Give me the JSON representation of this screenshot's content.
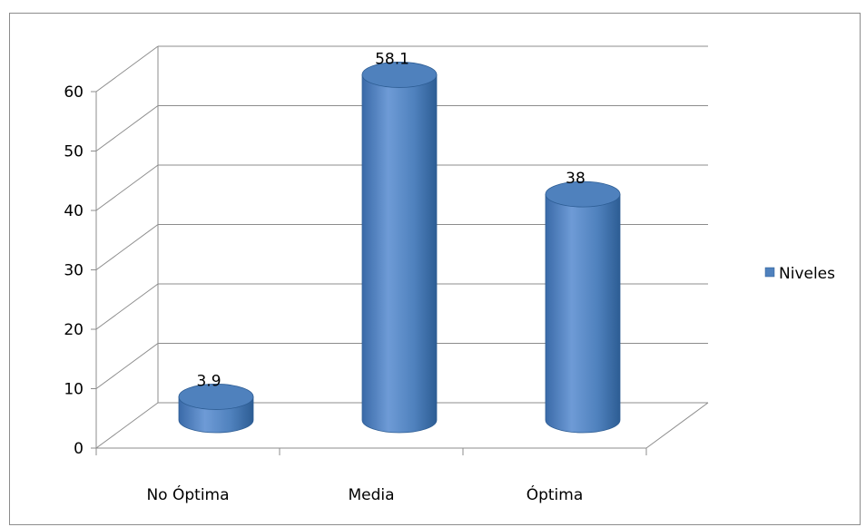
{
  "chart_data": {
    "type": "bar",
    "categories": [
      "No Óptima",
      "Media",
      "Óptima"
    ],
    "series": [
      {
        "name": "Niveles",
        "values": [
          3.9,
          58.1,
          38
        ],
        "color": "#4f81bd"
      }
    ],
    "data_labels": [
      "3.9",
      "58.1",
      "38"
    ],
    "y_ticks": [
      "0",
      "10",
      "20",
      "30",
      "40",
      "50",
      "60"
    ],
    "ylim": [
      0,
      60
    ],
    "grid": true,
    "legend_position": "right",
    "style": "3d-cylinder"
  },
  "colors": {
    "bar_main": "#4f81bd",
    "bar_light": "#7fa7dc",
    "bar_dark": "#2d5d94",
    "grid": "#8c8c8c"
  }
}
